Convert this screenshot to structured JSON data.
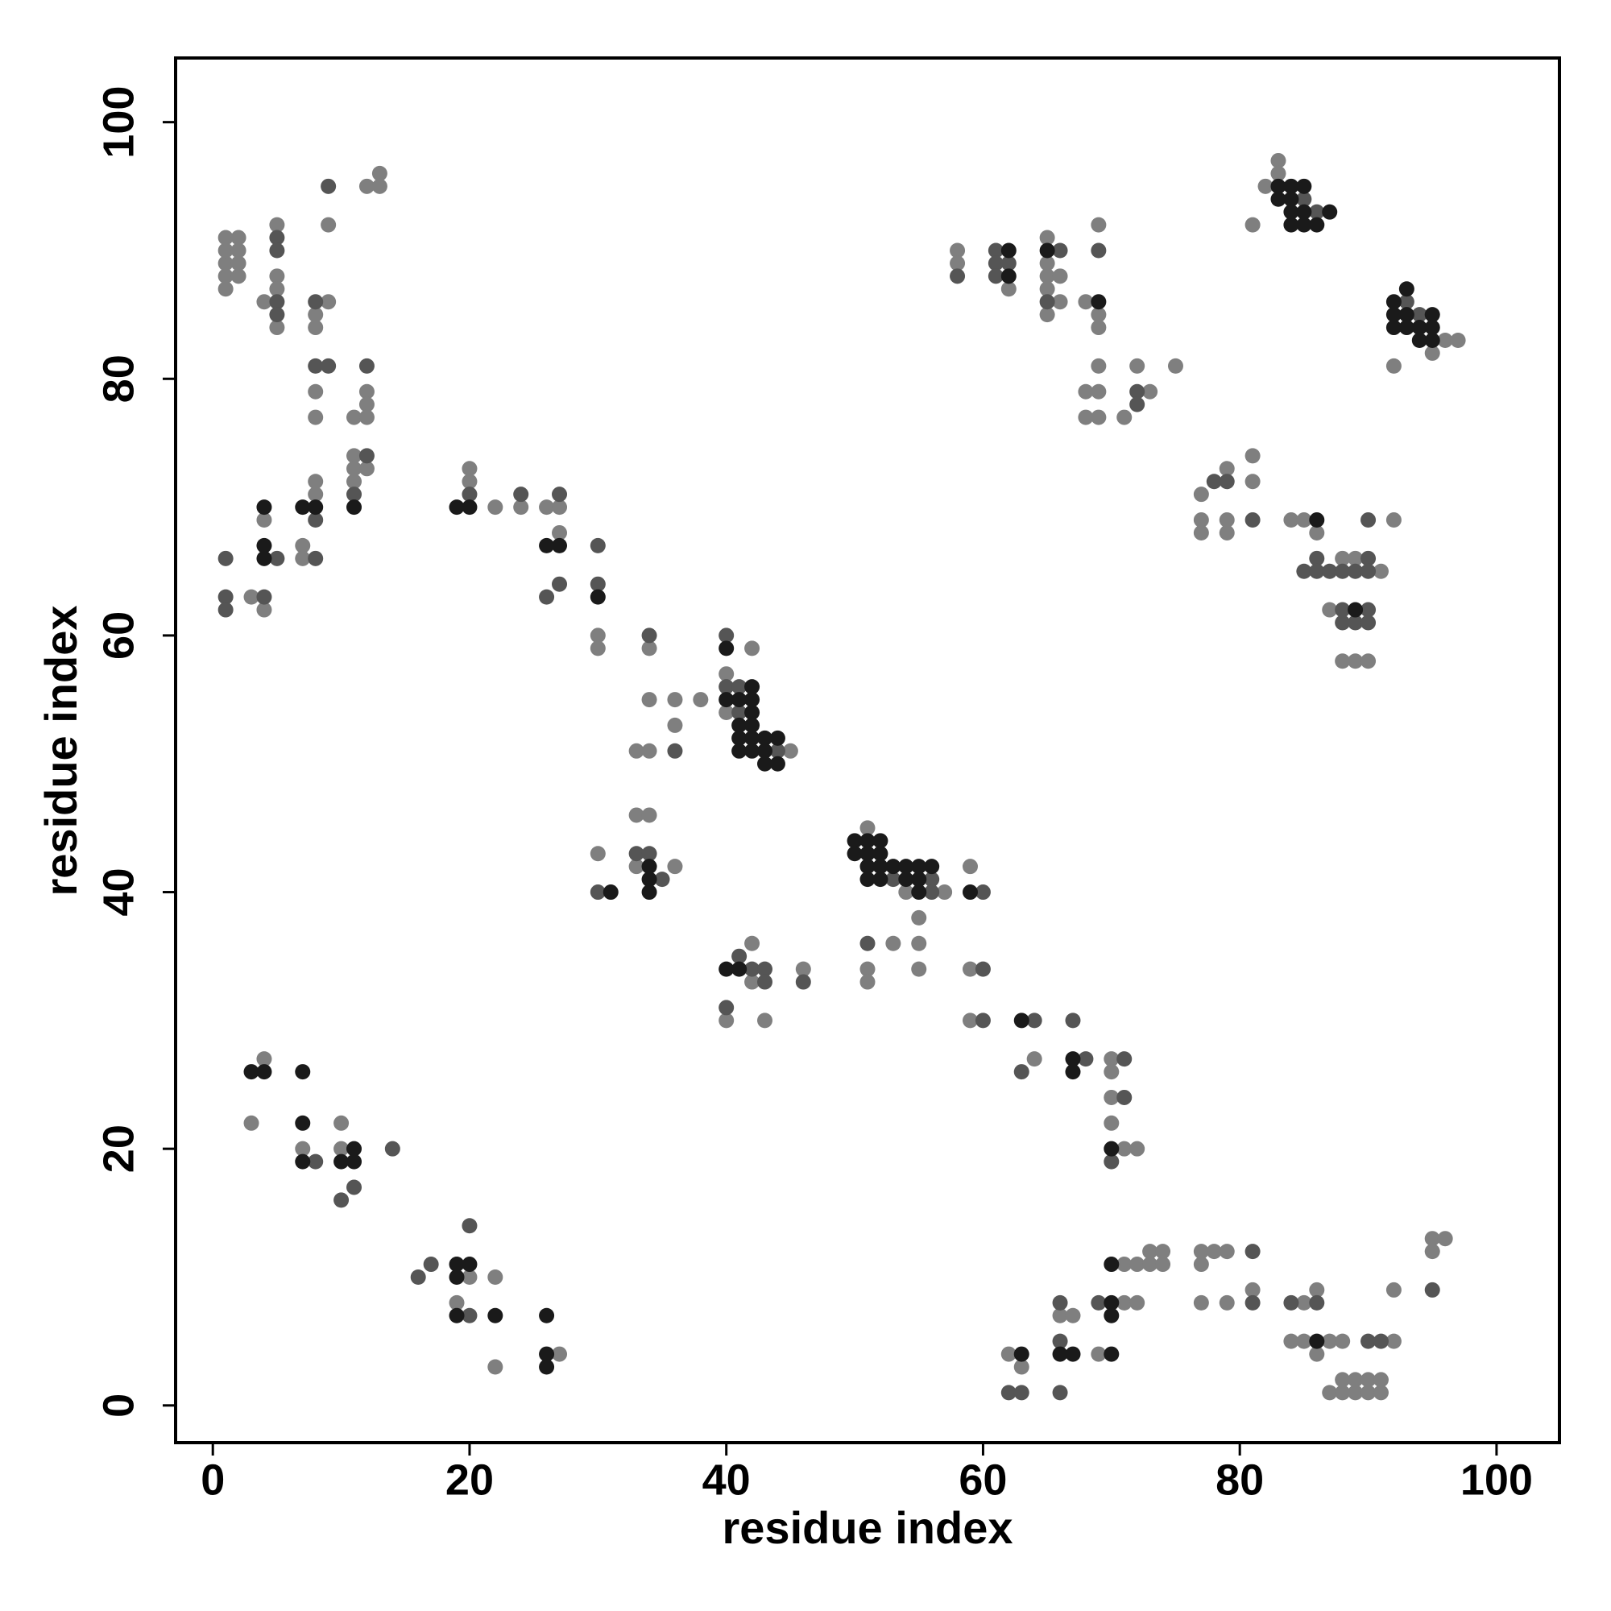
{
  "chart_data": {
    "type": "scatter",
    "xlabel": "residue index",
    "ylabel": "residue index",
    "xlim": [
      -2.9,
      104.9
    ],
    "ylim": [
      -2.9,
      105
    ],
    "xticks": [
      0,
      20,
      40,
      60,
      80,
      100
    ],
    "yticks": [
      0,
      20,
      40,
      60,
      80,
      100
    ],
    "series": [
      {
        "color": "#7f7f7f",
        "x": [
          1,
          1,
          1,
          1,
          1,
          2,
          2,
          2,
          2,
          4,
          5,
          5,
          5,
          5,
          8,
          8,
          8,
          8,
          8,
          8,
          9,
          9,
          11,
          11,
          11,
          11,
          12,
          12,
          12,
          12,
          12,
          13,
          13,
          3,
          4,
          4,
          7,
          7,
          20,
          20,
          22,
          24,
          26,
          27,
          27,
          30,
          30,
          34,
          34,
          34,
          33,
          36,
          36,
          38,
          40,
          40,
          42,
          45,
          33,
          33,
          34,
          36,
          30,
          40,
          42,
          42,
          43,
          46,
          51,
          54,
          57,
          59,
          51,
          51,
          53,
          55,
          55,
          55,
          59,
          59,
          64,
          70,
          70,
          70,
          70,
          71,
          72,
          3,
          4,
          7,
          10,
          10,
          19,
          20,
          22,
          22,
          27,
          62,
          63,
          66,
          67,
          69,
          71,
          71,
          72,
          72,
          73,
          73,
          74,
          74,
          77,
          77,
          77,
          78,
          79,
          79,
          81,
          84,
          85,
          85,
          86,
          86,
          87,
          87,
          88,
          88,
          88,
          89,
          89,
          90,
          90,
          91,
          91,
          92,
          92,
          95,
          95,
          96,
          58,
          58,
          62,
          65,
          65,
          65,
          65,
          65,
          66,
          66,
          68,
          68,
          68,
          69,
          69,
          69,
          69,
          69,
          69,
          71,
          72,
          73,
          75,
          82,
          81,
          83,
          83,
          92,
          95,
          96,
          97,
          77,
          77,
          77,
          79,
          79,
          79,
          81,
          81,
          84,
          85,
          86,
          87,
          88,
          88,
          89,
          89,
          90,
          91,
          92
        ],
        "values": [
          87,
          88,
          89,
          90,
          91,
          88,
          89,
          90,
          91,
          86,
          92,
          88,
          87,
          84,
          85,
          84,
          79,
          77,
          72,
          71,
          92,
          86,
          77,
          74,
          73,
          72,
          95,
          79,
          78,
          77,
          73,
          96,
          95,
          63,
          69,
          62,
          67,
          66,
          73,
          72,
          70,
          70,
          70,
          70,
          68,
          60,
          59,
          59,
          55,
          51,
          51,
          55,
          53,
          55,
          57,
          54,
          59,
          51,
          46,
          42,
          46,
          42,
          43,
          30,
          36,
          33,
          30,
          34,
          45,
          40,
          40,
          42,
          34,
          33,
          36,
          38,
          36,
          34,
          34,
          30,
          27,
          27,
          26,
          24,
          22,
          20,
          20,
          22,
          27,
          20,
          22,
          20,
          8,
          10,
          10,
          3,
          4,
          4,
          3,
          7,
          7,
          4,
          11,
          8,
          11,
          8,
          12,
          11,
          12,
          11,
          12,
          11,
          8,
          12,
          12,
          8,
          9,
          5,
          8,
          5,
          9,
          4,
          5,
          1,
          5,
          2,
          1,
          2,
          1,
          2,
          1,
          2,
          1,
          9,
          5,
          13,
          12,
          13,
          90,
          89,
          87,
          91,
          89,
          88,
          87,
          85,
          88,
          86,
          86,
          79,
          77,
          92,
          85,
          84,
          81,
          79,
          77,
          77,
          81,
          79,
          81,
          95,
          92,
          97,
          96,
          81,
          82,
          83,
          83,
          71,
          69,
          68,
          73,
          69,
          68,
          74,
          72,
          69,
          69,
          68,
          62,
          66,
          58,
          66,
          58,
          58,
          65,
          69
        ]
      },
      {
        "color": "#555555",
        "x": [
          5,
          5,
          5,
          5,
          8,
          8,
          8,
          8,
          9,
          9,
          11,
          12,
          12,
          1,
          1,
          1,
          4,
          5,
          20,
          24,
          26,
          27,
          27,
          30,
          30,
          34,
          36,
          40,
          40,
          41,
          41,
          44,
          33,
          34,
          35,
          30,
          40,
          41,
          42,
          43,
          43,
          46,
          53,
          56,
          56,
          60,
          51,
          60,
          60,
          63,
          64,
          67,
          68,
          70,
          71,
          71,
          8,
          10,
          11,
          14,
          16,
          17,
          20,
          20,
          62,
          63,
          66,
          66,
          66,
          69,
          81,
          81,
          84,
          86,
          90,
          91,
          95,
          58,
          61,
          61,
          61,
          62,
          65,
          66,
          69,
          72,
          72,
          85,
          86,
          93,
          94,
          78,
          79,
          81,
          85,
          86,
          86,
          87,
          88,
          88,
          88,
          89,
          89,
          90,
          90,
          90,
          90,
          90
        ],
        "values": [
          91,
          90,
          86,
          85,
          86,
          81,
          69,
          66,
          95,
          81,
          71,
          81,
          74,
          66,
          63,
          62,
          63,
          66,
          71,
          71,
          63,
          71,
          64,
          67,
          64,
          60,
          51,
          60,
          56,
          56,
          54,
          51,
          43,
          43,
          41,
          40,
          31,
          35,
          34,
          34,
          33,
          33,
          41,
          41,
          40,
          40,
          36,
          34,
          30,
          26,
          30,
          30,
          27,
          19,
          27,
          24,
          19,
          16,
          17,
          20,
          10,
          11,
          14,
          7,
          1,
          1,
          8,
          5,
          1,
          8,
          12,
          8,
          8,
          8,
          5,
          5,
          9,
          88,
          90,
          89,
          88,
          89,
          86,
          90,
          90,
          79,
          78,
          94,
          93,
          86,
          85,
          72,
          72,
          69,
          65,
          66,
          65,
          65,
          65,
          62,
          61,
          65,
          61,
          69,
          66,
          65,
          62,
          61
        ]
      },
      {
        "color": "#1a1a1a",
        "x": [
          8,
          11,
          4,
          4,
          4,
          7,
          19,
          20,
          26,
          27,
          30,
          40,
          40,
          41,
          41,
          41,
          41,
          42,
          42,
          42,
          42,
          42,
          42,
          43,
          43,
          43,
          44,
          44,
          34,
          34,
          34,
          31,
          40,
          41,
          50,
          50,
          51,
          51,
          51,
          51,
          52,
          52,
          52,
          52,
          53,
          54,
          54,
          55,
          55,
          55,
          56,
          59,
          63,
          67,
          67,
          70,
          3,
          4,
          7,
          7,
          7,
          10,
          11,
          11,
          19,
          19,
          19,
          20,
          22,
          26,
          26,
          26,
          63,
          66,
          67,
          70,
          70,
          70,
          70,
          86,
          62,
          62,
          65,
          69,
          83,
          83,
          84,
          84,
          84,
          84,
          85,
          85,
          85,
          86,
          87,
          92,
          92,
          92,
          93,
          93,
          93,
          94,
          94,
          95,
          95,
          95,
          86,
          89
        ],
        "values": [
          70,
          70,
          70,
          67,
          66,
          70,
          70,
          70,
          67,
          67,
          63,
          59,
          55,
          55,
          53,
          52,
          51,
          56,
          55,
          54,
          53,
          52,
          51,
          52,
          51,
          50,
          52,
          50,
          42,
          41,
          40,
          40,
          34,
          34,
          44,
          43,
          44,
          43,
          42,
          41,
          44,
          43,
          42,
          41,
          42,
          42,
          41,
          42,
          41,
          40,
          42,
          40,
          30,
          27,
          26,
          20,
          26,
          26,
          26,
          22,
          19,
          19,
          20,
          19,
          11,
          10,
          7,
          11,
          7,
          7,
          4,
          3,
          4,
          4,
          4,
          11,
          8,
          7,
          4,
          5,
          90,
          88,
          90,
          86,
          95,
          94,
          95,
          94,
          93,
          92,
          95,
          93,
          92,
          92,
          93,
          86,
          85,
          84,
          87,
          85,
          84,
          84,
          83,
          85,
          84,
          83,
          69,
          62
        ]
      }
    ]
  }
}
